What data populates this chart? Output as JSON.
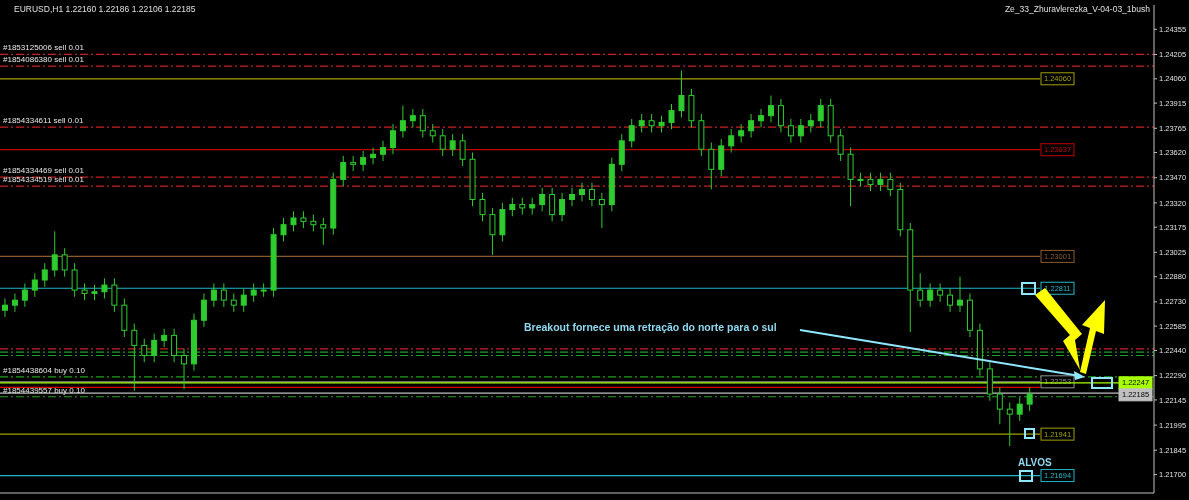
{
  "chart_data": {
    "type": "candlestick",
    "title": "EURUSD,H1  1.22160 1.22186 1.22106 1.22185",
    "subtitle": "Ze_33_Zhuravlerezka_V-04-03_1bush",
    "categories": [
      null,
      null,
      null,
      null,
      null,
      null,
      null,
      null,
      null,
      null,
      null,
      null,
      null,
      null,
      null,
      null,
      null,
      null,
      null,
      null,
      null,
      null,
      null,
      null,
      null,
      null,
      null,
      null,
      null,
      null,
      null,
      null,
      null,
      null,
      null,
      null,
      null,
      null,
      null,
      null,
      null,
      null,
      null,
      null,
      null,
      null,
      null,
      null,
      null,
      null,
      null,
      null,
      null,
      null,
      null,
      null,
      null,
      null,
      null,
      null,
      null,
      null,
      null,
      null,
      null,
      null,
      null,
      null,
      null,
      null,
      null,
      null,
      null,
      null,
      null,
      null,
      null,
      null,
      null,
      null,
      null,
      null,
      null,
      null,
      null,
      null,
      null,
      null,
      null,
      null,
      null,
      null,
      null,
      null,
      null,
      null,
      null,
      null,
      null,
      null,
      null,
      null,
      null,
      null,
      null,
      null,
      null,
      null,
      null,
      null,
      null,
      null,
      null,
      null,
      null,
      null
    ],
    "color": "#2ecc2e",
    "ohlc": [
      [
        1.2268,
        1.2275,
        1.2264,
        1.2271
      ],
      [
        1.2271,
        1.2278,
        1.2267,
        1.2274
      ],
      [
        1.2274,
        1.2284,
        1.227,
        1.228
      ],
      [
        1.228,
        1.229,
        1.2276,
        1.2286
      ],
      [
        1.2286,
        1.2296,
        1.2282,
        1.2292
      ],
      [
        1.2292,
        1.2315,
        1.2288,
        1.2301
      ],
      [
        1.2301,
        1.2305,
        1.2288,
        1.2292
      ],
      [
        1.2292,
        1.2296,
        1.2276,
        1.228
      ],
      [
        1.228,
        1.2284,
        1.2274,
        1.2278
      ],
      [
        1.2278,
        1.2283,
        1.2274,
        1.2279
      ],
      [
        1.2279,
        1.2287,
        1.2275,
        1.2283
      ],
      [
        1.2283,
        1.2287,
        1.2267,
        1.2271
      ],
      [
        1.2271,
        1.2275,
        1.2252,
        1.2256
      ],
      [
        1.2256,
        1.226,
        1.222,
        1.2247
      ],
      [
        1.2247,
        1.2251,
        1.2237,
        1.2241
      ],
      [
        1.2241,
        1.2254,
        1.2237,
        1.225
      ],
      [
        1.225,
        1.2257,
        1.2246,
        1.2253
      ],
      [
        1.2253,
        1.2257,
        1.2237,
        1.2241
      ],
      [
        1.2241,
        1.2245,
        1.2221,
        1.2236
      ],
      [
        1.2236,
        1.2266,
        1.2232,
        1.2262
      ],
      [
        1.2262,
        1.2278,
        1.2258,
        1.2274
      ],
      [
        1.2274,
        1.2284,
        1.227,
        1.228
      ],
      [
        1.228,
        1.2284,
        1.227,
        1.2274
      ],
      [
        1.2274,
        1.2278,
        1.2267,
        1.2271
      ],
      [
        1.2271,
        1.2281,
        1.2267,
        1.2277
      ],
      [
        1.2277,
        1.2284,
        1.2273,
        1.228
      ],
      [
        1.228,
        1.2284,
        1.2276,
        1.228
      ],
      [
        1.228,
        1.2317,
        1.2276,
        1.2313
      ],
      [
        1.2313,
        1.2323,
        1.2309,
        1.2319
      ],
      [
        1.2319,
        1.2327,
        1.2315,
        1.2323
      ],
      [
        1.2323,
        1.2327,
        1.2317,
        1.2321
      ],
      [
        1.2321,
        1.2325,
        1.2315,
        1.2319
      ],
      [
        1.2319,
        1.2323,
        1.2307,
        1.2317
      ],
      [
        1.2317,
        1.235,
        1.2313,
        1.2346
      ],
      [
        1.2346,
        1.236,
        1.2342,
        1.2356
      ],
      [
        1.2356,
        1.236,
        1.2351,
        1.2355
      ],
      [
        1.2355,
        1.2363,
        1.2351,
        1.2359
      ],
      [
        1.2359,
        1.2365,
        1.2355,
        1.2361
      ],
      [
        1.2361,
        1.2369,
        1.2357,
        1.2365
      ],
      [
        1.2365,
        1.2379,
        1.2361,
        1.2375
      ],
      [
        1.2375,
        1.239,
        1.2371,
        1.2381
      ],
      [
        1.2381,
        1.2388,
        1.2377,
        1.2384
      ],
      [
        1.2384,
        1.2388,
        1.2371,
        1.2375
      ],
      [
        1.2375,
        1.2379,
        1.2368,
        1.2372
      ],
      [
        1.2372,
        1.2376,
        1.236,
        1.2364
      ],
      [
        1.2364,
        1.2373,
        1.236,
        1.2369
      ],
      [
        1.2369,
        1.2373,
        1.2354,
        1.2358
      ],
      [
        1.2358,
        1.2362,
        1.233,
        1.2334
      ],
      [
        1.2334,
        1.2338,
        1.2321,
        1.2325
      ],
      [
        1.2325,
        1.2329,
        1.2301,
        1.2313
      ],
      [
        1.2313,
        1.2332,
        1.2309,
        1.2328
      ],
      [
        1.2328,
        1.2335,
        1.2324,
        1.2331
      ],
      [
        1.2331,
        1.2335,
        1.2325,
        1.2329
      ],
      [
        1.2329,
        1.2335,
        1.2325,
        1.2331
      ],
      [
        1.2331,
        1.2341,
        1.2327,
        1.2337
      ],
      [
        1.2337,
        1.2341,
        1.2321,
        1.2325
      ],
      [
        1.2325,
        1.2338,
        1.2321,
        1.2334
      ],
      [
        1.2334,
        1.2341,
        1.233,
        1.2337
      ],
      [
        1.2337,
        1.2344,
        1.2333,
        1.234
      ],
      [
        1.234,
        1.2344,
        1.233,
        1.2334
      ],
      [
        1.2334,
        1.2338,
        1.2317,
        1.2331
      ],
      [
        1.2331,
        1.2359,
        1.2327,
        1.2355
      ],
      [
        1.2355,
        1.2373,
        1.2351,
        1.2369
      ],
      [
        1.2369,
        1.2382,
        1.2365,
        1.2378
      ],
      [
        1.2378,
        1.2385,
        1.2374,
        1.2381
      ],
      [
        1.2381,
        1.2385,
        1.2374,
        1.2378
      ],
      [
        1.2378,
        1.2384,
        1.2374,
        1.238
      ],
      [
        1.238,
        1.2391,
        1.2376,
        1.2387
      ],
      [
        1.2387,
        1.2411,
        1.2383,
        1.2396
      ],
      [
        1.2396,
        1.24,
        1.2377,
        1.2381
      ],
      [
        1.2381,
        1.2385,
        1.236,
        1.2364
      ],
      [
        1.2364,
        1.2368,
        1.234,
        1.2352
      ],
      [
        1.2352,
        1.237,
        1.2348,
        1.2366
      ],
      [
        1.2366,
        1.2376,
        1.2362,
        1.2372
      ],
      [
        1.2372,
        1.2379,
        1.2368,
        1.2375
      ],
      [
        1.2375,
        1.2385,
        1.2371,
        1.2381
      ],
      [
        1.2381,
        1.2388,
        1.2377,
        1.2384
      ],
      [
        1.2384,
        1.2396,
        1.238,
        1.239
      ],
      [
        1.239,
        1.2394,
        1.2374,
        1.2378
      ],
      [
        1.2378,
        1.2382,
        1.2368,
        1.2372
      ],
      [
        1.2372,
        1.2382,
        1.2368,
        1.2378
      ],
      [
        1.2378,
        1.2385,
        1.2374,
        1.2381
      ],
      [
        1.2381,
        1.2394,
        1.2377,
        1.239
      ],
      [
        1.239,
        1.2394,
        1.2368,
        1.2372
      ],
      [
        1.2372,
        1.2376,
        1.2357,
        1.2361
      ],
      [
        1.2361,
        1.2365,
        1.233,
        1.2346
      ],
      [
        1.2346,
        1.235,
        1.2342,
        1.2346
      ],
      [
        1.2346,
        1.235,
        1.2339,
        1.2343
      ],
      [
        1.2343,
        1.235,
        1.2339,
        1.2346
      ],
      [
        1.2346,
        1.235,
        1.2336,
        1.234
      ],
      [
        1.234,
        1.2344,
        1.2312,
        1.2316
      ],
      [
        1.2316,
        1.232,
        1.2255,
        1.228
      ],
      [
        1.228,
        1.229,
        1.227,
        1.2274
      ],
      [
        1.2274,
        1.2284,
        1.227,
        1.228
      ],
      [
        1.228,
        1.2284,
        1.2273,
        1.2277
      ],
      [
        1.2277,
        1.2281,
        1.2267,
        1.2271
      ],
      [
        1.2271,
        1.2288,
        1.2267,
        1.2274
      ],
      [
        1.2274,
        1.2278,
        1.2252,
        1.2256
      ],
      [
        1.2256,
        1.226,
        1.2229,
        1.2233
      ],
      [
        1.2233,
        1.2237,
        1.2214,
        1.2218
      ],
      [
        1.2218,
        1.2222,
        1.22,
        1.2209
      ],
      [
        1.2209,
        1.2213,
        1.2187,
        1.2206
      ],
      [
        1.2206,
        1.2216,
        1.2202,
        1.2212
      ],
      [
        1.2212,
        1.2222,
        1.2208,
        1.2218
      ],
      null,
      null,
      null,
      null,
      null,
      null,
      null,
      null,
      null,
      null,
      null,
      null
    ],
    "ylim": [
      1.2159,
      1.245
    ],
    "yticks": [
      {
        "value": 1.24355,
        "label": "1.24355"
      },
      {
        "value": 1.24205,
        "label": "1.24205"
      },
      {
        "value": 1.2406,
        "label": "1.24060"
      },
      {
        "value": 1.23915,
        "label": "1.23915"
      },
      {
        "value": 1.23765,
        "label": "1.23765"
      },
      {
        "value": 1.2362,
        "label": "1.23620"
      },
      {
        "value": 1.2347,
        "label": "1.23470"
      },
      {
        "value": 1.2332,
        "label": "1.23320"
      },
      {
        "value": 1.23175,
        "label": "1.23175"
      },
      {
        "value": 1.23025,
        "label": "1.23025"
      },
      {
        "value": 1.2288,
        "label": "1.22880"
      },
      {
        "value": 1.2273,
        "label": "1.22730"
      },
      {
        "value": 1.22585,
        "label": "1.22585"
      },
      {
        "value": 1.2244,
        "label": "1.22440"
      },
      {
        "value": 1.2229,
        "label": "1.22290"
      },
      {
        "value": 1.22145,
        "label": "1.22145"
      },
      {
        "value": 1.21995,
        "label": "1.21995"
      },
      {
        "value": 1.21845,
        "label": "1.21845"
      },
      {
        "value": 1.217,
        "label": "1.21700"
      }
    ],
    "ref_lines": [
      {
        "axis": "y",
        "value": 1.24206,
        "label": "#1853125006 sell 0.01",
        "color": "#c82020",
        "line_style": "dashed"
      },
      {
        "axis": "y",
        "value": 1.24135,
        "label": "#1854086380 sell 0.01",
        "color": "#c82020",
        "line_style": "dashed"
      },
      {
        "axis": "y",
        "value": 1.23772,
        "label": "#1854334611 sell 0.01",
        "color": "#c82020",
        "line_style": "dashed"
      },
      {
        "axis": "y",
        "value": 1.23474,
        "label": "#1854334469 sell 0.01",
        "color": "#c82020",
        "line_style": "dashed"
      },
      {
        "axis": "y",
        "value": 1.2342,
        "label": "#1854334519 sell 0.01",
        "color": "#c82020",
        "line_style": "dashed"
      },
      {
        "axis": "y",
        "value": 1.2245,
        "color": "#c82020",
        "line_style": "dashed"
      },
      {
        "axis": "y",
        "value": 1.2243,
        "color": "#20a020",
        "line_style": "dashed"
      },
      {
        "axis": "y",
        "value": 1.2241,
        "color": "#20a020",
        "line_style": "dashed"
      },
      {
        "axis": "y",
        "value": 1.22283,
        "label": "#1854438604 buy 0.10",
        "color": "#20a020",
        "line_style": "dashed"
      },
      {
        "axis": "y",
        "value": 1.22164,
        "label": "#1854439557 buy 0.10",
        "color": "#20a020",
        "line_style": "dashed"
      },
      {
        "axis": "y",
        "value": 1.2406,
        "label": "1.24060",
        "color": "#a0a000",
        "line_style": "solid"
      },
      {
        "axis": "y",
        "value": 1.23637,
        "label": "1.23637",
        "color": "#c00000",
        "line_style": "solid"
      },
      {
        "axis": "y",
        "value": 1.23001,
        "label": "1.23001",
        "color": "#8b5a2b",
        "line_style": "solid"
      },
      {
        "axis": "y",
        "value": 1.22811,
        "label": "1.22811",
        "color": "#20b8c8",
        "line_style": "solid"
      },
      {
        "axis": "y",
        "value": 1.22253,
        "label": "1.22253",
        "color": "#909090",
        "line_style": "solid"
      },
      {
        "axis": "y",
        "value": 1.2222,
        "color": "#e00000",
        "line_style": "solid"
      },
      {
        "axis": "y",
        "value": 1.21941,
        "label": "1.21941",
        "color": "#a0a000",
        "line_style": "solid"
      },
      {
        "axis": "y",
        "value": 1.21694,
        "label": "1.21694",
        "color": "#20b8c8",
        "line_style": "solid"
      },
      {
        "axis": "y",
        "value": 1.22247,
        "label": "1.22247",
        "color": "#a8ff00",
        "line_style": "solid"
      },
      {
        "axis": "y",
        "value": 1.22185,
        "label": "1.22185",
        "color": "#c0c0c0",
        "line_style": "solid"
      }
    ],
    "annotations": [
      "Breakout fornece uma retração do norte para o sul",
      "ALVOS"
    ]
  }
}
